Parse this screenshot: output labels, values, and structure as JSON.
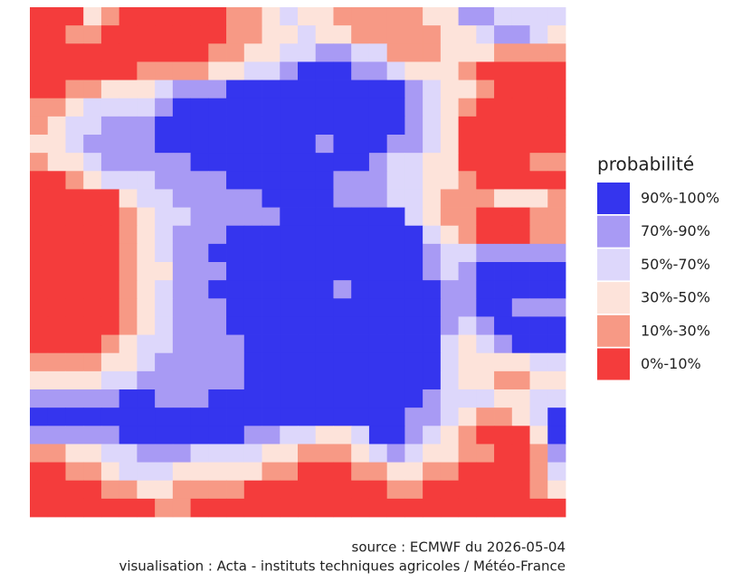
{
  "map": {
    "grid": [
      "555345555554432334444433112222",
      "554455555554433233444443321123",
      "555555555544332211224443334444",
      "555555444433221000112333455555",
      "554433321110000000000123345555",
      "443222210000000000000123455555",
      "432211100000000000000123555555",
      "332111100000000010001123555555",
      "433211111000000000012233555544",
      "554322211110000001112233455555",
      "555553221111100001112234443334",
      "555554322111110000000234455544",
      "555554321110000000000023455544",
      "555554321100000000000012211111",
      "555554331110000000000012100000",
      "555554321100000001000001100000",
      "555554321110000000000001100111",
      "555554321110000000000001210000",
      "555543221111000000000002321000",
      "444433211111000000000002333322",
      "333322111111000000000002334433",
      "111110011100000000000012223322",
      "000000000000000000000112344320",
      "111110000000112233200123455530",
      "443322111222233444321233445541",
      "554432223333344555443344555542",
      "555544334444555555554455555543",
      "555555544555555555555555555555"
    ]
  },
  "legend": {
    "title": "probabilité",
    "items": [
      {
        "label": "90%-100%",
        "color": "#3535ee"
      },
      {
        "label": "70%-90%",
        "color": "#a89af4"
      },
      {
        "label": "50%-70%",
        "color": "#ddd7fb"
      },
      {
        "label": "30%-50%",
        "color": "#fde3da"
      },
      {
        "label": "10%-30%",
        "color": "#f79985"
      },
      {
        "label": "0%-10%",
        "color": "#f43c3c"
      }
    ]
  },
  "caption": {
    "source": "source : ECMWF du 2026-05-04",
    "visualisation": "visualisation : Acta - instituts techniques agricoles / Météo-France"
  }
}
